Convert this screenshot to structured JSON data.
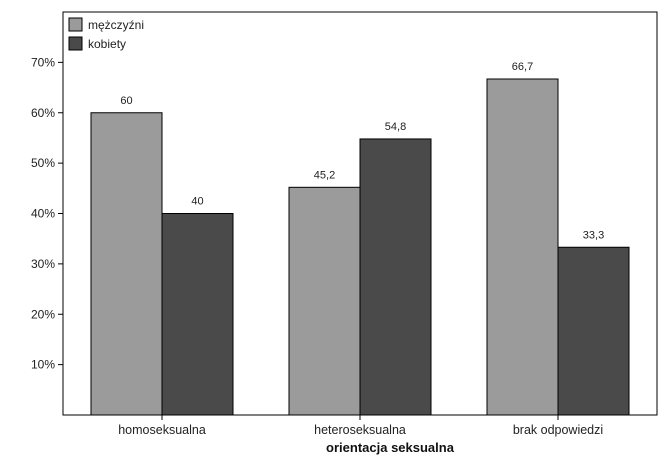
{
  "chart_data": {
    "type": "bar",
    "title": "",
    "xlabel": "orientacja seksualna",
    "ylabel": "",
    "categories": [
      "homoseksualna",
      "heteroseksualna",
      "brak odpowiedzi"
    ],
    "series": [
      {
        "name": "mężczyźni",
        "values": [
          60,
          45.2,
          66.7
        ],
        "labels": [
          "60",
          "45,2",
          "66,7"
        ],
        "color": "#9b9b9b"
      },
      {
        "name": "kobiety",
        "values": [
          40,
          54.8,
          33.3
        ],
        "labels": [
          "40",
          "54,8",
          "33,3"
        ],
        "color": "#4a4a4a"
      }
    ],
    "ylim": [
      0,
      80
    ],
    "yticks": [
      10,
      20,
      30,
      40,
      50,
      60,
      70
    ],
    "ytick_labels": [
      "10%",
      "20%",
      "30%",
      "40%",
      "50%",
      "60%",
      "70%"
    ],
    "grid": false,
    "legend_position": "top-left"
  }
}
